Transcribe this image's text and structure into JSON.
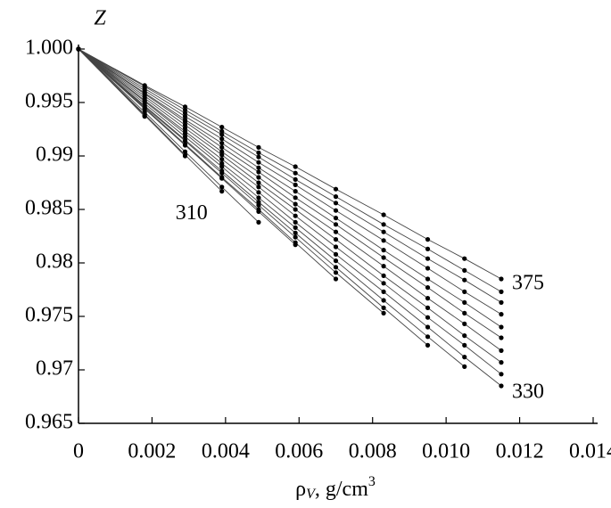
{
  "chart_data": {
    "type": "line",
    "y_label": "Z",
    "x_label": {
      "symbol": "ρ",
      "subscript": "V",
      "unit": ", g/cm",
      "superscript": "3"
    },
    "annotations": [
      "375",
      "330",
      "310"
    ],
    "x": [
      0,
      0.0018,
      0.0029,
      0.0039,
      0.0049,
      0.0059,
      0.007,
      0.0083,
      0.0095,
      0.0105,
      0.0115
    ],
    "color": "#000000",
    "series": [
      {
        "values": [
          1,
          0.9966,
          0.9946,
          0.9927,
          0.9908,
          0.989,
          0.9869,
          0.9845,
          0.9822,
          0.9804,
          0.9785
        ]
      },
      {
        "values": [
          1,
          0.9965,
          0.9943,
          0.9923,
          0.9903,
          0.9884,
          0.9862,
          0.9836,
          0.9813,
          0.9793,
          0.9773
        ]
      },
      {
        "values": [
          1,
          0.9963,
          0.994,
          0.992,
          0.9899,
          0.9878,
          0.9856,
          0.9829,
          0.9804,
          0.9784,
          0.9763
        ]
      },
      {
        "values": [
          1,
          0.9961,
          0.9937,
          0.9916,
          0.9894,
          0.9873,
          0.9849,
          0.9821,
          0.9795,
          0.9773,
          0.9752
        ]
      },
      {
        "values": [
          1,
          0.9959,
          0.9934,
          0.9912,
          0.9889,
          0.9867,
          0.9842,
          0.9812,
          0.9785,
          0.9763,
          0.974
        ]
      },
      {
        "values": [
          1,
          0.9958,
          0.9932,
          0.9908,
          0.9885,
          0.9861,
          0.9836,
          0.9805,
          0.9777,
          0.9753,
          0.973
        ]
      },
      {
        "values": [
          1,
          0.9956,
          0.9929,
          0.9904,
          0.988,
          0.9855,
          0.9829,
          0.9797,
          0.9767,
          0.9743,
          0.9718
        ]
      },
      {
        "values": [
          1,
          0.9954,
          0.9926,
          0.9901,
          0.9875,
          0.985,
          0.9822,
          0.9788,
          0.9758,
          0.9732,
          0.9707
        ]
      },
      {
        "values": [
          1,
          0.9952,
          0.9923,
          0.9897,
          0.9871,
          0.9844,
          0.9815,
          0.9781,
          0.9749,
          0.9723,
          0.9696
        ]
      },
      {
        "values": [
          1,
          0.9951,
          0.9921,
          0.9893,
          0.9866,
          0.9838,
          0.9808,
          0.9773,
          0.974,
          0.9712,
          0.9685
        ]
      },
      {
        "values": [
          1,
          0.9949,
          0.9918,
          0.989,
          0.9861,
          0.9833,
          0.9802,
          0.9765,
          0.9731,
          0.9703,
          null
        ]
      },
      {
        "values": [
          1,
          0.9947,
          0.9915,
          0.9886,
          0.9857,
          0.9828,
          0.9796,
          0.9758,
          0.9723,
          null,
          null
        ]
      },
      {
        "values": [
          1,
          0.9946,
          0.9914,
          0.9884,
          0.9854,
          0.9824,
          0.9791,
          0.9753,
          null,
          null,
          null
        ]
      },
      {
        "values": [
          1,
          0.9945,
          0.9911,
          0.988,
          0.985,
          0.9819,
          0.9785,
          null,
          null,
          null,
          null
        ]
      },
      {
        "values": [
          1,
          0.9944,
          0.991,
          0.9879,
          0.9848,
          0.9817,
          null,
          null,
          null,
          null,
          null
        ]
      },
      {
        "values": [
          1,
          0.9941,
          0.9904,
          0.9871,
          0.9838,
          null,
          null,
          null,
          null,
          null,
          null
        ]
      },
      {
        "values": [
          1,
          0.9939,
          0.9901,
          0.9867,
          null,
          null,
          null,
          null,
          null,
          null,
          null
        ]
      },
      {
        "values": [
          1,
          0.9938,
          0.99,
          null,
          null,
          null,
          null,
          null,
          null,
          null,
          null
        ]
      },
      {
        "values": [
          1,
          0.9937,
          null,
          null,
          null,
          null,
          null,
          null,
          null,
          null,
          null
        ]
      }
    ],
    "xlim": [
      0,
      0.014
    ],
    "xticks": [
      0,
      0.002,
      0.004,
      0.006,
      0.008,
      {
        "value": 0.01,
        "label": "0.010"
      },
      0.012,
      0.014
    ],
    "ylim": [
      0.965,
      1.0
    ],
    "yticks": [
      0.965,
      0.97,
      0.975,
      0.98,
      0.985,
      0.99,
      0.995,
      {
        "value": 1.0,
        "label": "1.000"
      }
    ],
    "grid": false
  }
}
